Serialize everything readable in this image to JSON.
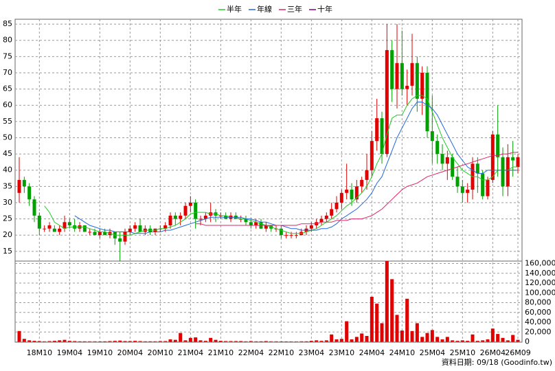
{
  "chart_data": {
    "type": "candlestick",
    "categories": [
      null,
      null,
      null,
      null,
      "18M10",
      null,
      null,
      null,
      null,
      null,
      "19M04",
      null,
      null,
      null,
      null,
      null,
      "19M10",
      null,
      null,
      null,
      null,
      null,
      "20M04",
      null,
      null,
      null,
      null,
      null,
      "20M10",
      null,
      null,
      null,
      null,
      null,
      "21M04",
      null,
      null,
      null,
      null,
      null,
      "21M10",
      null,
      null,
      null,
      null,
      null,
      "22M04",
      null,
      null,
      null,
      null,
      null,
      "22M10",
      null,
      null,
      null,
      null,
      null,
      "23M04",
      null,
      null,
      null,
      null,
      null,
      "23M10",
      null,
      null,
      null,
      null,
      null,
      "24M04",
      null,
      null,
      null,
      null,
      null,
      "24M10",
      null,
      null,
      null,
      null,
      null,
      "25M04",
      null,
      null,
      null,
      null,
      null,
      "25M10",
      null,
      null,
      null,
      null,
      null,
      "26M04",
      null,
      null,
      null,
      null,
      "26M09"
    ],
    "ohlc": [
      [
        33,
        44,
        30,
        37
      ],
      [
        37,
        38,
        33,
        35
      ],
      [
        35,
        36,
        29,
        31
      ],
      [
        31,
        32,
        24,
        26
      ],
      [
        26,
        27,
        20,
        22
      ],
      [
        22,
        23,
        21,
        22
      ],
      [
        22,
        24,
        21,
        23
      ],
      [
        22,
        23,
        21,
        21
      ],
      [
        21,
        23,
        20,
        22
      ],
      [
        22,
        26,
        21,
        24
      ],
      [
        24,
        25,
        22,
        23
      ],
      [
        23,
        25,
        21,
        22
      ],
      [
        22,
        24,
        21,
        23
      ],
      [
        23,
        23,
        21,
        21
      ],
      [
        21,
        22,
        20,
        21
      ],
      [
        21,
        22,
        20,
        20
      ],
      [
        20,
        22,
        19,
        21
      ],
      [
        21,
        22,
        20,
        20
      ],
      [
        20,
        22,
        19,
        21
      ],
      [
        21,
        21,
        17,
        19
      ],
      [
        19,
        21,
        12,
        18
      ],
      [
        18,
        22,
        17,
        21
      ],
      [
        21,
        23,
        20,
        22
      ],
      [
        22,
        24,
        21,
        23
      ],
      [
        23,
        25,
        21,
        21
      ],
      [
        21,
        23,
        20,
        22
      ],
      [
        22,
        23,
        20,
        21
      ],
      [
        21,
        22,
        20,
        22
      ],
      [
        22,
        23,
        21,
        22
      ],
      [
        22,
        24,
        21,
        23
      ],
      [
        23,
        27,
        22,
        26
      ],
      [
        26,
        27,
        23,
        25
      ],
      [
        25,
        27,
        23,
        26
      ],
      [
        26,
        30,
        25,
        29
      ],
      [
        29,
        32,
        27,
        30
      ],
      [
        30,
        31,
        22,
        25
      ],
      [
        25,
        26,
        23,
        25
      ],
      [
        25,
        27,
        24,
        26
      ],
      [
        26,
        30,
        24,
        27
      ],
      [
        27,
        28,
        24,
        26
      ],
      [
        26,
        27,
        25,
        26
      ],
      [
        26,
        27,
        25,
        25
      ],
      [
        25,
        27,
        24,
        26
      ],
      [
        26,
        27,
        25,
        25
      ],
      [
        25,
        26,
        24,
        25
      ],
      [
        25,
        26,
        23,
        24
      ],
      [
        24,
        25,
        22,
        23
      ],
      [
        23,
        25,
        22,
        24
      ],
      [
        24,
        25,
        22,
        22
      ],
      [
        22,
        24,
        21,
        23
      ],
      [
        23,
        23,
        21,
        22
      ],
      [
        22,
        23,
        21,
        22
      ],
      [
        22,
        23,
        19,
        20
      ],
      [
        20,
        21,
        19,
        20
      ],
      [
        20,
        21,
        19,
        20
      ],
      [
        20,
        21,
        19,
        20
      ],
      [
        20,
        22,
        20,
        21
      ],
      [
        21,
        23,
        20,
        22
      ],
      [
        22,
        24,
        21,
        23
      ],
      [
        23,
        25,
        22,
        24
      ],
      [
        24,
        26,
        23,
        25
      ],
      [
        25,
        27,
        24,
        26
      ],
      [
        26,
        30,
        25,
        28
      ],
      [
        28,
        32,
        27,
        30
      ],
      [
        30,
        34,
        28,
        33
      ],
      [
        33,
        42,
        31,
        34
      ],
      [
        34,
        36,
        29,
        31
      ],
      [
        31,
        37,
        30,
        35
      ],
      [
        35,
        38,
        33,
        37
      ],
      [
        37,
        45,
        34,
        40
      ],
      [
        40,
        52,
        38,
        49
      ],
      [
        49,
        62,
        46,
        56
      ],
      [
        56,
        58,
        42,
        45
      ],
      [
        45,
        85,
        44,
        77
      ],
      [
        77,
        80,
        61,
        65
      ],
      [
        65,
        85,
        59,
        73
      ],
      [
        73,
        83,
        63,
        65
      ],
      [
        65,
        71,
        60,
        66
      ],
      [
        66,
        82,
        63,
        73
      ],
      [
        73,
        75,
        58,
        62
      ],
      [
        62,
        72,
        57,
        70
      ],
      [
        70,
        72,
        50,
        52
      ],
      [
        52,
        63,
        42,
        49
      ],
      [
        49,
        51,
        42,
        45
      ],
      [
        45,
        48,
        40,
        42
      ],
      [
        42,
        46,
        37,
        44
      ],
      [
        44,
        45,
        37,
        38
      ],
      [
        38,
        41,
        33,
        35
      ],
      [
        35,
        37,
        30,
        33
      ],
      [
        33,
        36,
        30,
        34
      ],
      [
        34,
        44,
        31,
        42
      ],
      [
        42,
        44,
        33,
        39
      ],
      [
        39,
        40,
        31,
        32
      ],
      [
        32,
        38,
        31,
        37
      ],
      [
        37,
        52,
        36,
        51
      ],
      [
        51,
        60,
        38,
        44
      ],
      [
        44,
        47,
        32,
        35
      ],
      [
        35,
        48,
        32,
        44
      ],
      [
        44,
        49,
        38,
        43
      ],
      [
        41,
        45,
        39,
        44
      ]
    ],
    "up_color": "#e00000",
    "down_color": "#00a000",
    "ylim": [
      12,
      86.5
    ],
    "yticks": [
      15,
      20,
      25,
      30,
      35,
      40,
      45,
      50,
      55,
      60,
      65,
      70,
      75,
      80,
      85
    ],
    "grid": true,
    "series": [
      {
        "name": "半年",
        "color": "#22cc22",
        "values": [
          null,
          null,
          null,
          null,
          null,
          29,
          27,
          24,
          23,
          22,
          22.5,
          22.5,
          22.5,
          22.5,
          22,
          21.5,
          21,
          21,
          20.5,
          20,
          20,
          20,
          20,
          20.5,
          21,
          21.5,
          21.5,
          21.5,
          22,
          22,
          22.5,
          23,
          24,
          25,
          26.5,
          27,
          27,
          27,
          26.5,
          26.5,
          26,
          26,
          25.5,
          25.5,
          25,
          25,
          24.5,
          24,
          23.5,
          23,
          22.5,
          22,
          21.5,
          21,
          20.5,
          20.5,
          20.5,
          21,
          21.5,
          22,
          23,
          24,
          25,
          26,
          27.5,
          29,
          30,
          31.5,
          33,
          35,
          38,
          42,
          45,
          51,
          56,
          57,
          57,
          60,
          62,
          63,
          63,
          62,
          58,
          54,
          50,
          47,
          44,
          42,
          40,
          39,
          38,
          38,
          37,
          37,
          38,
          40,
          40,
          40,
          41,
          41
        ]
      },
      {
        "name": "年線",
        "color": "#2266dd",
        "values": [
          null,
          null,
          null,
          null,
          null,
          null,
          null,
          null,
          null,
          null,
          null,
          26,
          25,
          24,
          23,
          22.5,
          22,
          21.5,
          21.5,
          21,
          21,
          21,
          21,
          20.5,
          20.5,
          20.5,
          21,
          21,
          21,
          21.5,
          21.5,
          22,
          22.5,
          23,
          23.5,
          24,
          24.5,
          25,
          25.5,
          25.5,
          25.5,
          25.5,
          25.5,
          25.5,
          25.5,
          25,
          25,
          24.5,
          24,
          24,
          23.5,
          23,
          23,
          22.5,
          22,
          22,
          21.5,
          21.5,
          21.5,
          21.5,
          22,
          22,
          22.5,
          23.5,
          25,
          26,
          27,
          28,
          29.5,
          31,
          33,
          36,
          38,
          42,
          46,
          50,
          53,
          56,
          59,
          61,
          61,
          60,
          59,
          57,
          54,
          51,
          48,
          45,
          43,
          41,
          40,
          39,
          39,
          40,
          40,
          40,
          40,
          40,
          40,
          40
        ]
      },
      {
        "name": "三年",
        "color": "#dd2266",
        "values": [
          null,
          null,
          null,
          null,
          null,
          null,
          null,
          null,
          null,
          null,
          null,
          null,
          null,
          null,
          null,
          null,
          null,
          null,
          null,
          null,
          null,
          null,
          null,
          null,
          null,
          null,
          null,
          null,
          null,
          null,
          null,
          null,
          null,
          null,
          null,
          23.5,
          23.5,
          23,
          23,
          23,
          23,
          23,
          23,
          23,
          23,
          23,
          23,
          23,
          23,
          23,
          23,
          23,
          23,
          23,
          23,
          23,
          23.5,
          23.5,
          23.5,
          23.5,
          24,
          24,
          24,
          24.5,
          24.5,
          24.5,
          25,
          25,
          25,
          25.5,
          26,
          27,
          28,
          29.5,
          31,
          32.5,
          34,
          35,
          35.5,
          36,
          37,
          38,
          38.5,
          39,
          39.5,
          40,
          40.5,
          41,
          41.5,
          42,
          42.5,
          43,
          43.5,
          44,
          44.5,
          44.5,
          45,
          45,
          45.5,
          45.5
        ]
      },
      {
        "name": "十年",
        "color": "#800080",
        "values": [
          null,
          null,
          null,
          null,
          null,
          null,
          null,
          null,
          null,
          null,
          null,
          null,
          null,
          null,
          null,
          null,
          null,
          null,
          null,
          null,
          null,
          null,
          null,
          null,
          null,
          null,
          null,
          null,
          null,
          null,
          null,
          null,
          null,
          null,
          null,
          null,
          null,
          null,
          null,
          null,
          null,
          null,
          null,
          null,
          null,
          null,
          null,
          null,
          null,
          null,
          null,
          null,
          null,
          null,
          null,
          null,
          null,
          null,
          null,
          null,
          null,
          null,
          null,
          null,
          null,
          null,
          null,
          null,
          null,
          null,
          null,
          null,
          null,
          null,
          null,
          null,
          null,
          null,
          null,
          null,
          null,
          null,
          null,
          null,
          null,
          null,
          null,
          null,
          null,
          null,
          null,
          null,
          null,
          null,
          null,
          null,
          null,
          null,
          null,
          null
        ]
      }
    ],
    "volume": {
      "color": "#e00000",
      "values": [
        22000,
        6000,
        3000,
        2000,
        1500,
        1000,
        1500,
        2000,
        3000,
        4000,
        2000,
        1500,
        1000,
        1000,
        1000,
        1000,
        800,
        1000,
        1500,
        2000,
        2500,
        1500,
        1500,
        2000,
        1500,
        1000,
        1000,
        1000,
        1500,
        1500,
        5000,
        4000,
        18000,
        3000,
        8000,
        9000,
        3000,
        2000,
        8000,
        4000,
        2000,
        1500,
        1500,
        1500,
        1500,
        1000,
        1500,
        1000,
        1000,
        1500,
        1000,
        1000,
        800,
        800,
        800,
        800,
        1000,
        1000,
        2000,
        3000,
        2000,
        3000,
        15000,
        5000,
        6000,
        42000,
        5000,
        10000,
        17000,
        12000,
        92000,
        78000,
        38000,
        165000,
        128000,
        55000,
        23000,
        88000,
        22000,
        38000,
        10000,
        18000,
        24000,
        10000,
        5000,
        10000,
        3000,
        2000,
        3000,
        2000,
        15000,
        2000,
        3000,
        5000,
        27000,
        16000,
        8000,
        3000,
        14000,
        4000
      ],
      "y2lim": [
        0,
        165000
      ],
      "y2ticks": [
        0,
        {
          "value": 20000,
          "label": "20,000"
        },
        {
          "value": 40000,
          "label": "40,000"
        },
        {
          "value": 60000,
          "label": "60,000"
        },
        {
          "value": 80000,
          "label": "80,000"
        },
        {
          "value": 100000,
          "label": "100,000"
        },
        {
          "value": 120000,
          "label": "120,000"
        },
        {
          "value": 140000,
          "label": "140,000"
        },
        {
          "value": 160000,
          "label": "160,000"
        }
      ]
    },
    "footer": "資料日期: 09/18 (Goodinfo.tw)"
  }
}
